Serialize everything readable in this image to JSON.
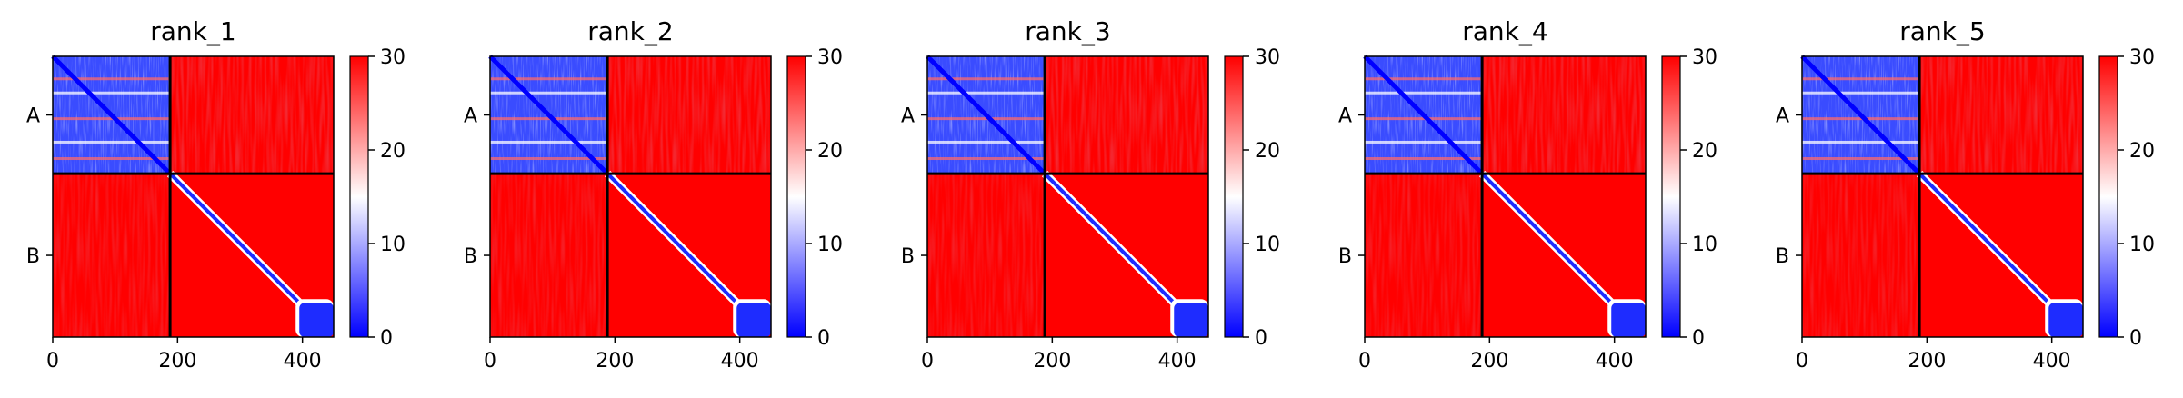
{
  "chart_data": [
    {
      "type": "heatmap",
      "title": "rank_1",
      "chains": [
        "A",
        "B"
      ],
      "chain_boundary": 188,
      "x_ticks": [
        "0",
        "200",
        "400"
      ],
      "xlim": [
        0,
        450
      ],
      "ylim": [
        450,
        0
      ],
      "colorbar": {
        "min": 0,
        "max": 30,
        "ticks": [
          "0",
          "10",
          "20",
          "30"
        ],
        "colormap": "bwr"
      }
    },
    {
      "type": "heatmap",
      "title": "rank_2",
      "chains": [
        "A",
        "B"
      ],
      "chain_boundary": 188,
      "x_ticks": [
        "0",
        "200",
        "400"
      ],
      "xlim": [
        0,
        450
      ],
      "ylim": [
        450,
        0
      ],
      "colorbar": {
        "min": 0,
        "max": 30,
        "ticks": [
          "0",
          "10",
          "20",
          "30"
        ],
        "colormap": "bwr"
      }
    },
    {
      "type": "heatmap",
      "title": "rank_3",
      "chains": [
        "A",
        "B"
      ],
      "chain_boundary": 188,
      "x_ticks": [
        "0",
        "200",
        "400"
      ],
      "xlim": [
        0,
        450
      ],
      "ylim": [
        450,
        0
      ],
      "colorbar": {
        "min": 0,
        "max": 30,
        "ticks": [
          "0",
          "10",
          "20",
          "30"
        ],
        "colormap": "bwr"
      }
    },
    {
      "type": "heatmap",
      "title": "rank_4",
      "chains": [
        "A",
        "B"
      ],
      "chain_boundary": 188,
      "x_ticks": [
        "0",
        "200",
        "400"
      ],
      "xlim": [
        0,
        450
      ],
      "ylim": [
        450,
        0
      ],
      "colorbar": {
        "min": 0,
        "max": 30,
        "ticks": [
          "0",
          "10",
          "20",
          "30"
        ],
        "colormap": "bwr"
      }
    },
    {
      "type": "heatmap",
      "title": "rank_5",
      "chains": [
        "A",
        "B"
      ],
      "chain_boundary": 188,
      "x_ticks": [
        "0",
        "200",
        "400"
      ],
      "xlim": [
        0,
        450
      ],
      "ylim": [
        450,
        0
      ],
      "colorbar": {
        "min": 0,
        "max": 30,
        "ticks": [
          "0",
          "10",
          "20",
          "30"
        ],
        "colormap": "bwr"
      }
    }
  ],
  "colors": {
    "low": "#0000ff",
    "mid": "#ffffff",
    "high": "#ff0000",
    "divider": "#000000"
  }
}
